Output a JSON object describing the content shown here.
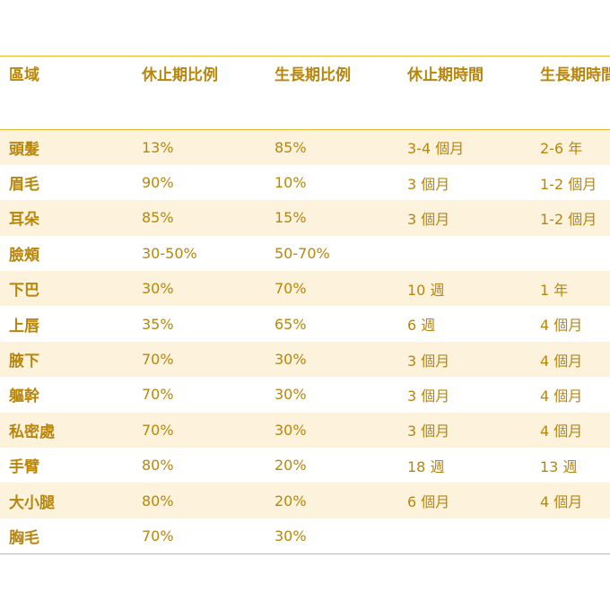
{
  "table": {
    "headers": [
      "區域",
      "休止期比例",
      "生長期比例",
      "休止期時間",
      "生長期時間"
    ],
    "rows": [
      [
        "頭髮",
        "13%",
        "85%",
        "3-4 個月",
        "2-6 年"
      ],
      [
        "眉毛",
        "90%",
        "10%",
        "3 個月",
        "1-2 個月"
      ],
      [
        "耳朵",
        "85%",
        "15%",
        "3 個月",
        "1-2 個月"
      ],
      [
        "臉頰",
        "30-50%",
        "50-70%",
        "",
        ""
      ],
      [
        "下巴",
        "30%",
        "70%",
        "10 週",
        "1 年"
      ],
      [
        "上唇",
        "35%",
        "65%",
        "6 週",
        "4 個月"
      ],
      [
        "腋下",
        "70%",
        "30%",
        "3 個月",
        "4 個月"
      ],
      [
        "軀幹",
        "70%",
        "30%",
        "3 個月",
        "4 個月"
      ],
      [
        "私密處",
        "70%",
        "30%",
        "3 個月",
        "4 個月"
      ],
      [
        "手臂",
        "80%",
        "20%",
        "18 週",
        "13 週"
      ],
      [
        "大小腿",
        "80%",
        "20%",
        "6 個月",
        "4 個月"
      ],
      [
        "胸毛",
        "70%",
        "30%",
        "",
        ""
      ]
    ]
  },
  "colors": {
    "text": "#b8860b",
    "border": "#e8b830",
    "band": "#fdf2dc"
  }
}
